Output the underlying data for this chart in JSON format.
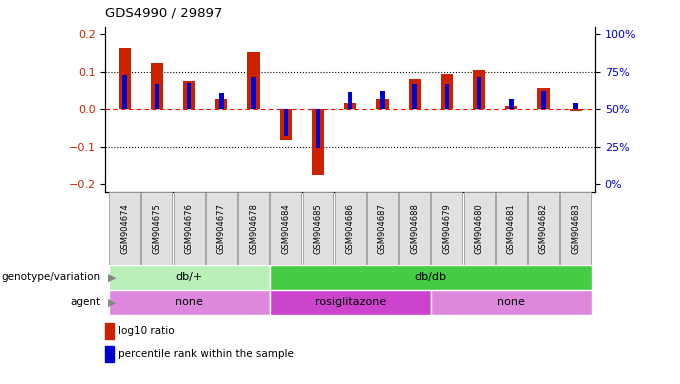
{
  "title": "GDS4990 / 29897",
  "samples": [
    "GSM904674",
    "GSM904675",
    "GSM904676",
    "GSM904677",
    "GSM904678",
    "GSM904684",
    "GSM904685",
    "GSM904686",
    "GSM904687",
    "GSM904688",
    "GSM904679",
    "GSM904680",
    "GSM904681",
    "GSM904682",
    "GSM904683"
  ],
  "log10_ratio": [
    0.165,
    0.125,
    0.075,
    0.028,
    0.152,
    -0.082,
    -0.175,
    0.018,
    0.028,
    0.08,
    0.095,
    0.105,
    0.008,
    0.058,
    -0.005
  ],
  "percentile_rank": [
    0.093,
    0.068,
    0.07,
    0.043,
    0.087,
    -0.072,
    -0.103,
    0.047,
    0.048,
    0.068,
    0.068,
    0.087,
    0.028,
    0.05,
    0.018
  ],
  "bar_color_red": "#cc2200",
  "bar_color_blue": "#0000cc",
  "ylim": [
    -0.22,
    0.22
  ],
  "yticks_left": [
    -0.2,
    -0.1,
    0.0,
    0.1,
    0.2
  ],
  "yticks_right": [
    0,
    25,
    50,
    75,
    100
  ],
  "hline_y": [
    0.1,
    0.0,
    -0.1
  ],
  "genotype_groups": [
    {
      "label": "db/+",
      "start": 0,
      "end": 5,
      "color": "#b8f0b8"
    },
    {
      "label": "db/db",
      "start": 5,
      "end": 15,
      "color": "#44cc44"
    }
  ],
  "agent_groups": [
    {
      "label": "none",
      "start": 0,
      "end": 5,
      "color": "#dd88dd"
    },
    {
      "label": "rosiglitazone",
      "start": 5,
      "end": 10,
      "color": "#cc44cc"
    },
    {
      "label": "none",
      "start": 10,
      "end": 15,
      "color": "#dd88dd"
    }
  ],
  "genotype_label": "genotype/variation",
  "agent_label": "agent",
  "legend_red": "log10 ratio",
  "legend_blue": "percentile rank within the sample",
  "background_color": "#ffffff",
  "tick_label_color_left": "#cc2200",
  "tick_label_color_right": "#0000cc"
}
